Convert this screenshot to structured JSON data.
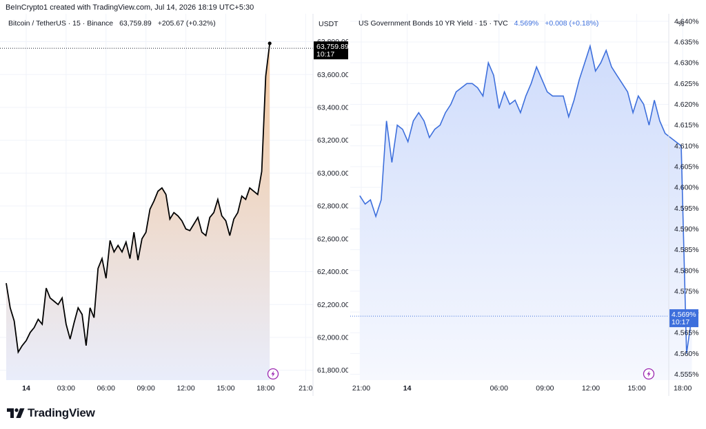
{
  "header": {
    "text": "BeInCrypto1 created with TradingView.com, Jul 14, 2026 18:19 UTC+5:30"
  },
  "footer": {
    "brand": "TradingView"
  },
  "chart_data": [
    {
      "type": "area",
      "title": "Bitcoin / TetherUS · 15 · Binance",
      "last_value_text": "63,759.89",
      "change_text": "+205.67 (+0.32%)",
      "currency": "USDT",
      "price_label": "63,759.89",
      "time_label": "10:17",
      "y_ticks": [
        "63,800.00",
        "63,600.00",
        "63,400.00",
        "63,200.00",
        "63,000.00",
        "62,800.00",
        "62,600.00",
        "62,400.00",
        "62,200.00",
        "62,000.00",
        "61,800.00"
      ],
      "x_ticks": [
        "14",
        "03:00",
        "06:00",
        "09:00",
        "12:00",
        "15:00",
        "18:00",
        "21:0"
      ],
      "ylim": [
        61740,
        63970
      ],
      "x_hours": [
        0,
        3,
        6,
        9,
        12,
        15,
        18,
        21
      ],
      "x": [
        -1.5,
        -1.2,
        -0.9,
        -0.6,
        -0.3,
        0.0,
        0.3,
        0.6,
        0.9,
        1.2,
        1.5,
        1.8,
        2.1,
        2.4,
        2.7,
        3.0,
        3.3,
        3.6,
        3.9,
        4.2,
        4.5,
        4.8,
        5.1,
        5.4,
        5.7,
        6.0,
        6.3,
        6.6,
        6.9,
        7.2,
        7.5,
        7.8,
        8.1,
        8.4,
        8.7,
        9.0,
        9.3,
        9.6,
        9.9,
        10.2,
        10.5,
        10.8,
        11.1,
        11.4,
        11.7,
        12.0,
        12.3,
        12.6,
        12.9,
        13.2,
        13.5,
        13.8,
        14.1,
        14.4,
        14.7,
        15.0,
        15.3,
        15.6,
        15.9,
        16.2,
        16.5,
        16.8,
        17.1,
        17.4,
        17.7,
        18.0,
        18.3
      ],
      "values": [
        62330,
        62180,
        62100,
        61910,
        61950,
        61980,
        62030,
        62060,
        62110,
        62080,
        62300,
        62240,
        62220,
        62200,
        62240,
        62080,
        61990,
        62090,
        62180,
        62140,
        61950,
        62180,
        62120,
        62420,
        62480,
        62360,
        62590,
        62520,
        62560,
        62520,
        62580,
        62480,
        62640,
        62470,
        62600,
        62640,
        62780,
        62830,
        62890,
        62910,
        62870,
        62720,
        62760,
        62740,
        62710,
        62660,
        62650,
        62690,
        62730,
        62640,
        62620,
        62730,
        62760,
        62840,
        62740,
        62710,
        62620,
        62720,
        62760,
        62860,
        62840,
        62910,
        62890,
        62870,
        63010,
        63590,
        63790
      ],
      "baseline_value": 63759.89,
      "colors": {
        "line": "#000000",
        "fill_top": "#f3c79d",
        "fill_bottom": "#e9edfb"
      }
    },
    {
      "type": "area",
      "title": "US Government Bonds 10 YR Yield · 15 · TVC",
      "last_value_text": "4.569%",
      "change_text": "+0.008 (+0.18%)",
      "currency": "%",
      "price_label": "4.569%",
      "time_label": "10:17",
      "y_ticks": [
        "4.640%",
        "4.635%",
        "4.630%",
        "4.625%",
        "4.620%",
        "4.615%",
        "4.610%",
        "4.605%",
        "4.600%",
        "4.595%",
        "4.590%",
        "4.585%",
        "4.580%",
        "4.575%",
        "4.570%",
        "4.565%",
        "4.560%",
        "4.555%"
      ],
      "x_ticks": [
        "21:00",
        "14",
        "06:00",
        "09:00",
        "12:00",
        "15:00",
        "18:00"
      ],
      "ylim": [
        4.5536,
        4.6418
      ],
      "x_hours": [
        21,
        24,
        30,
        33,
        36,
        39,
        42
      ],
      "x": [
        20.9,
        21.25,
        21.6,
        21.95,
        22.3,
        22.65,
        23.0,
        23.35,
        23.7,
        24.05,
        24.4,
        24.75,
        25.1,
        25.45,
        25.8,
        26.15,
        26.5,
        26.85,
        27.2,
        27.55,
        27.9,
        28.25,
        28.6,
        28.95,
        29.3,
        29.65,
        30.0,
        30.35,
        30.7,
        31.05,
        31.4,
        31.75,
        32.1,
        32.45,
        32.8,
        33.15,
        33.5,
        33.85,
        34.2,
        34.55,
        34.9,
        35.25,
        35.6,
        35.95,
        36.3,
        36.65,
        37.0,
        37.35,
        37.7,
        38.05,
        38.4,
        38.75,
        39.1,
        39.45,
        39.8,
        40.15,
        40.5,
        40.85,
        41.2,
        41.55,
        41.9,
        42.25,
        42.6
      ],
      "values": [
        4.598,
        4.596,
        4.597,
        4.593,
        4.597,
        4.616,
        4.606,
        4.615,
        4.614,
        4.611,
        4.616,
        4.618,
        4.616,
        4.612,
        4.614,
        4.615,
        4.618,
        4.62,
        4.623,
        4.624,
        4.625,
        4.625,
        4.624,
        4.622,
        4.63,
        4.627,
        4.619,
        4.623,
        4.62,
        4.621,
        4.618,
        4.622,
        4.625,
        4.629,
        4.626,
        4.623,
        4.622,
        4.622,
        4.622,
        4.617,
        4.621,
        4.626,
        4.63,
        4.634,
        4.628,
        4.63,
        4.633,
        4.629,
        4.627,
        4.625,
        4.623,
        4.618,
        4.622,
        4.62,
        4.615,
        4.621,
        4.616,
        4.613,
        4.612,
        4.611,
        4.61,
        4.56,
        4.569
      ],
      "baseline_value": 4.569,
      "colors": {
        "line": "#3d6fdc",
        "fill_top": "#cfdcfb",
        "fill_bottom": "#f6f8fe"
      }
    }
  ]
}
